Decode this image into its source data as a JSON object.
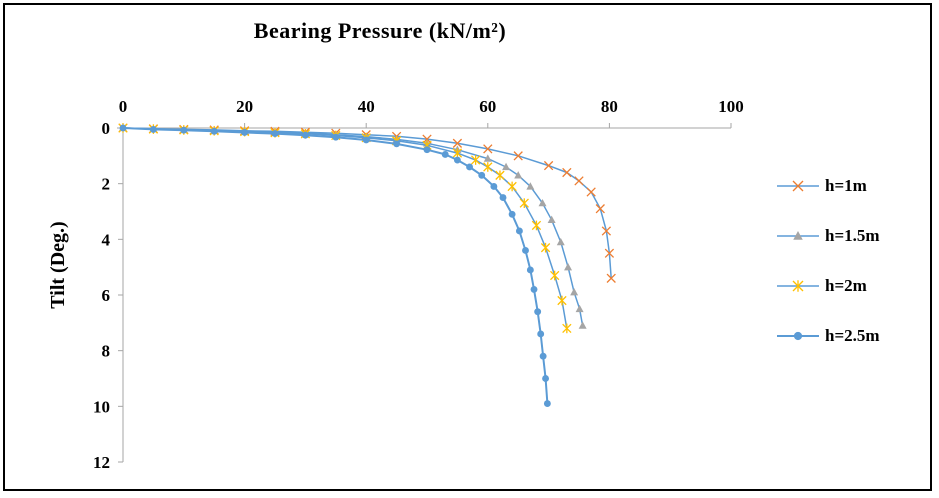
{
  "figure": {
    "background": "#FFFFFF",
    "frame_color": "#000000"
  },
  "chart_data": {
    "type": "line",
    "title": "Bearing Pressure (kN/m²)",
    "xlabel": "Bearing Pressure (kN/m²)",
    "ylabel": "Tilt (Deg.)",
    "xlim": [
      0,
      100
    ],
    "ylim": [
      0,
      12
    ],
    "y_axis_inverted": true,
    "x_ticks": [
      0,
      20,
      40,
      60,
      80,
      100
    ],
    "y_ticks": [
      0,
      2,
      4,
      6,
      8,
      10,
      12
    ],
    "grid": false,
    "legend_position": "right",
    "axis_color": "#A6A6A6",
    "line_color": "#5B9BD5",
    "series": [
      {
        "name": "h=1m",
        "marker": "x",
        "marker_color": "#ED7D31",
        "line_width": 1.5,
        "points": [
          [
            0,
            0
          ],
          [
            5,
            0.03
          ],
          [
            10,
            0.05
          ],
          [
            15,
            0.07
          ],
          [
            20,
            0.1
          ],
          [
            25,
            0.12
          ],
          [
            30,
            0.15
          ],
          [
            35,
            0.19
          ],
          [
            40,
            0.24
          ],
          [
            45,
            0.3
          ],
          [
            50,
            0.4
          ],
          [
            55,
            0.55
          ],
          [
            60,
            0.75
          ],
          [
            65,
            1.0
          ],
          [
            70,
            1.35
          ],
          [
            73,
            1.6
          ],
          [
            75,
            1.9
          ],
          [
            77,
            2.3
          ],
          [
            78.5,
            2.9
          ],
          [
            79.5,
            3.7
          ],
          [
            80,
            4.5
          ],
          [
            80.3,
            5.4
          ]
        ]
      },
      {
        "name": "h=1.5m",
        "marker": "triangle",
        "marker_color": "#A5A5A5",
        "line_width": 1.5,
        "points": [
          [
            0,
            0
          ],
          [
            5,
            0.03
          ],
          [
            10,
            0.06
          ],
          [
            15,
            0.09
          ],
          [
            20,
            0.12
          ],
          [
            25,
            0.15
          ],
          [
            30,
            0.19
          ],
          [
            35,
            0.24
          ],
          [
            40,
            0.31
          ],
          [
            45,
            0.41
          ],
          [
            50,
            0.55
          ],
          [
            55,
            0.78
          ],
          [
            60,
            1.1
          ],
          [
            63,
            1.4
          ],
          [
            65,
            1.7
          ],
          [
            67,
            2.1
          ],
          [
            69,
            2.7
          ],
          [
            70.5,
            3.3
          ],
          [
            72,
            4.1
          ],
          [
            73.2,
            5.0
          ],
          [
            74.2,
            5.9
          ],
          [
            75.1,
            6.5
          ],
          [
            75.6,
            7.1
          ]
        ]
      },
      {
        "name": "h=2m",
        "marker": "star",
        "marker_color": "#FFC000",
        "line_width": 1.5,
        "points": [
          [
            0,
            0
          ],
          [
            5,
            0.04
          ],
          [
            10,
            0.07
          ],
          [
            15,
            0.1
          ],
          [
            20,
            0.13
          ],
          [
            25,
            0.17
          ],
          [
            30,
            0.21
          ],
          [
            35,
            0.27
          ],
          [
            40,
            0.35
          ],
          [
            45,
            0.46
          ],
          [
            50,
            0.62
          ],
          [
            55,
            0.9
          ],
          [
            58,
            1.15
          ],
          [
            60,
            1.4
          ],
          [
            62,
            1.7
          ],
          [
            64,
            2.1
          ],
          [
            66,
            2.7
          ],
          [
            68,
            3.5
          ],
          [
            69.5,
            4.3
          ],
          [
            71,
            5.3
          ],
          [
            72.2,
            6.2
          ],
          [
            73,
            7.2
          ]
        ]
      },
      {
        "name": "h=2.5m",
        "marker": "circle",
        "marker_color": "#5B9BD5",
        "line_width": 2,
        "points": [
          [
            0,
            0
          ],
          [
            5,
            0.05
          ],
          [
            10,
            0.08
          ],
          [
            15,
            0.12
          ],
          [
            20,
            0.16
          ],
          [
            25,
            0.2
          ],
          [
            30,
            0.26
          ],
          [
            35,
            0.33
          ],
          [
            40,
            0.43
          ],
          [
            45,
            0.57
          ],
          [
            50,
            0.78
          ],
          [
            53,
            0.95
          ],
          [
            55,
            1.15
          ],
          [
            57,
            1.4
          ],
          [
            59,
            1.7
          ],
          [
            61,
            2.1
          ],
          [
            62.5,
            2.5
          ],
          [
            64,
            3.1
          ],
          [
            65.2,
            3.7
          ],
          [
            66.2,
            4.4
          ],
          [
            67,
            5.1
          ],
          [
            67.6,
            5.8
          ],
          [
            68.2,
            6.6
          ],
          [
            68.7,
            7.4
          ],
          [
            69.1,
            8.2
          ],
          [
            69.5,
            9.0
          ],
          [
            69.8,
            9.9
          ]
        ]
      }
    ]
  }
}
